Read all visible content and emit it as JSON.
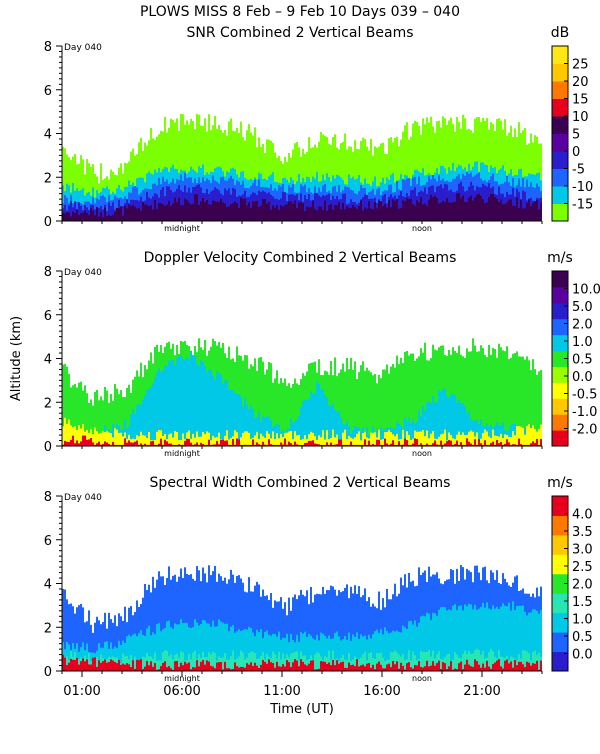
{
  "header": "PLOWS MISS    8 Feb –   9 Feb 10 Days 039 – 040",
  "chart_data": [
    {
      "type": "heatmap",
      "title": "SNR Combined 2 Vertical Beams",
      "units": "dB",
      "day_label": "Day 040",
      "ylim": [
        0,
        8
      ],
      "yticks": [
        "0",
        "2",
        "4",
        "6",
        "8"
      ],
      "legend_ticks": [
        "-15",
        "-10",
        "-5",
        "0",
        "5",
        "10",
        "15",
        "20",
        "25"
      ],
      "legend_colors": [
        "#7cff00",
        "#00c8e6",
        "#1e64ff",
        "#2a1ecc",
        "#5a00a0",
        "#3c0050",
        "#e6001e",
        "#ff7800",
        "#ffc800",
        "#ffe614"
      ],
      "top_km": [
        3.4,
        2.1,
        2.6,
        4.3,
        4.6,
        4.4,
        3.9,
        2.9,
        3.7,
        3.6,
        3.2,
        4.3,
        4.4,
        4.5,
        4.3,
        3.6
      ],
      "layer_km": [
        {
          "color": "#00c8e6",
          "km": [
            1.6,
            1.3,
            1.6,
            2.3,
            2.4,
            2.3,
            2.1,
            1.9,
            2.0,
            1.9,
            1.8,
            2.2,
            2.4,
            2.5,
            2.3,
            2.1
          ]
        },
        {
          "color": "#1e64ff",
          "km": [
            1.0,
            0.9,
            1.2,
            1.8,
            2.0,
            1.9,
            1.7,
            1.5,
            1.5,
            1.4,
            1.4,
            1.8,
            2.0,
            2.1,
            1.8,
            1.6
          ]
        },
        {
          "color": "#2a1ecc",
          "km": [
            0.7,
            0.6,
            0.8,
            1.3,
            1.5,
            1.4,
            1.2,
            1.1,
            1.1,
            1.0,
            1.0,
            1.3,
            1.5,
            1.6,
            1.3,
            1.1
          ]
        },
        {
          "color": "#3c0050",
          "km": [
            0.4,
            0.4,
            0.5,
            0.8,
            1.0,
            0.9,
            0.8,
            0.7,
            0.7,
            0.7,
            0.7,
            0.9,
            1.0,
            1.1,
            0.9,
            0.7
          ]
        }
      ],
      "xlabels": [
        "midnight",
        "noon"
      ]
    },
    {
      "type": "heatmap",
      "title": "Doppler Velocity Combined 2 Vertical Beams",
      "units": "m/s",
      "day_label": "Day 040",
      "ylim": [
        0,
        8
      ],
      "yticks": [
        "0",
        "2",
        "4",
        "6",
        "8"
      ],
      "ylabel": "Altitude (km)",
      "legend_ticks": [
        "-2.0",
        "-1.0",
        "-0.5",
        "0.0",
        "0.5",
        "1.0",
        "2.0",
        "5.0",
        "10.0"
      ],
      "legend_colors": [
        "#e6001e",
        "#ff7800",
        "#ffc800",
        "#ffff00",
        "#9cff00",
        "#28e628",
        "#00c8e6",
        "#1e64ff",
        "#2a1ecc",
        "#5a00a0",
        "#3c0050"
      ],
      "top_km": [
        3.4,
        2.1,
        2.6,
        4.3,
        4.6,
        4.4,
        3.9,
        2.9,
        3.7,
        3.6,
        3.2,
        4.3,
        4.4,
        4.5,
        4.3,
        3.6
      ],
      "layer_km": [
        {
          "color": "#00c8e6",
          "km": [
            0.6,
            0.6,
            1.0,
            3.5,
            4.2,
            3.0,
            1.5,
            0.7,
            2.8,
            0.8,
            0.7,
            1.2,
            2.6,
            1.0,
            0.8,
            0.7
          ]
        },
        {
          "color": "#ffff00",
          "km": [
            1.1,
            0.7,
            0.5,
            0.5,
            0.5,
            0.5,
            0.5,
            0.5,
            0.5,
            0.5,
            0.5,
            0.5,
            0.5,
            0.5,
            0.6,
            0.9
          ]
        },
        {
          "color": "#e6001e",
          "km": [
            0.3,
            0.2,
            0.1,
            0.1,
            0.1,
            0.1,
            0.1,
            0.1,
            0.1,
            0.1,
            0.1,
            0.1,
            0.1,
            0.1,
            0.1,
            0.1
          ]
        }
      ],
      "xlabels": [
        "midnight",
        "noon"
      ]
    },
    {
      "type": "heatmap",
      "title": "Spectral Width Combined 2 Vertical Beams",
      "units": "m/s",
      "day_label": "Day 040",
      "ylim": [
        0,
        8
      ],
      "yticks": [
        "0",
        "2",
        "4",
        "6",
        "8"
      ],
      "legend_ticks": [
        "0.0",
        "0.5",
        "1.0",
        "1.5",
        "2.0",
        "2.5",
        "3.0",
        "3.5",
        "4.0"
      ],
      "legend_colors": [
        "#2a1ecc",
        "#1e64ff",
        "#00c8e6",
        "#28e6b4",
        "#28e628",
        "#ffff00",
        "#ffc800",
        "#ff7800",
        "#e6001e"
      ],
      "top_km": [
        3.4,
        2.1,
        2.6,
        4.3,
        4.6,
        4.4,
        3.9,
        2.9,
        3.7,
        3.6,
        3.2,
        4.3,
        4.4,
        4.5,
        4.3,
        3.6
      ],
      "layer_km": [
        {
          "color": "#00c8e6",
          "km": [
            1.2,
            1.0,
            1.4,
            2.0,
            2.2,
            2.1,
            1.8,
            1.5,
            1.6,
            1.6,
            1.7,
            2.2,
            2.8,
            3.0,
            3.0,
            2.6
          ]
        },
        {
          "color": "#28e6b4",
          "km": [
            0.7,
            0.6,
            0.6,
            0.7,
            0.7,
            0.7,
            0.7,
            0.7,
            0.7,
            0.7,
            0.7,
            0.7,
            0.7,
            0.8,
            0.7,
            0.7
          ]
        },
        {
          "color": "#e6001e",
          "km": [
            0.5,
            0.4,
            0.3,
            0.3,
            0.3,
            0.3,
            0.3,
            0.3,
            0.3,
            0.3,
            0.3,
            0.3,
            0.3,
            0.3,
            0.3,
            0.3
          ]
        }
      ],
      "xlabels": [
        "midnight",
        "noon"
      ],
      "xticks": [
        "01:00",
        "06:00",
        "11:00",
        "16:00",
        "21:00"
      ],
      "xlabel": "Time (UT)"
    }
  ]
}
